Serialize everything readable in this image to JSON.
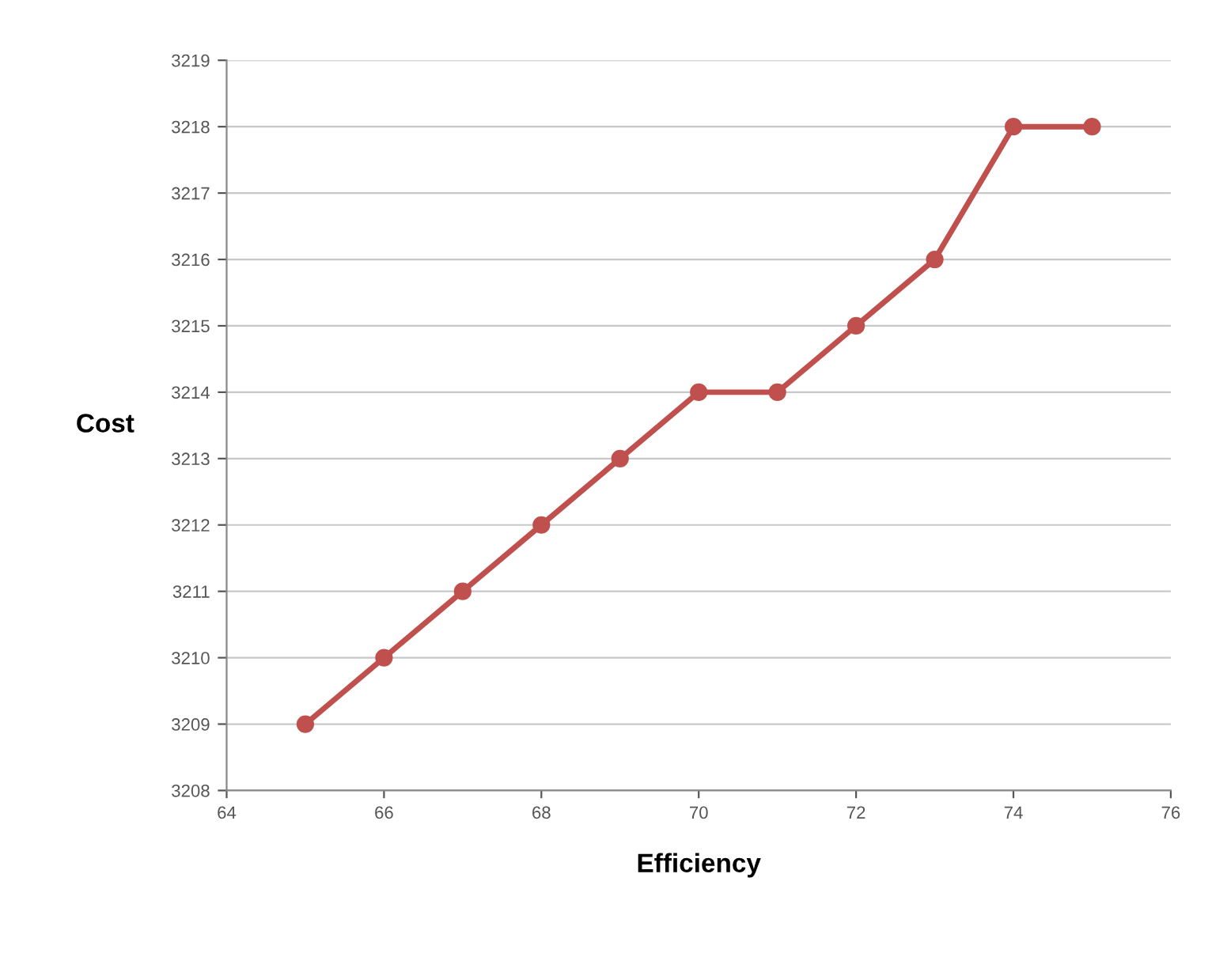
{
  "chart_data": {
    "type": "line",
    "xlabel": "Efficiency",
    "ylabel": "Cost",
    "x": [
      65,
      66,
      67,
      68,
      69,
      70,
      71,
      72,
      73,
      74,
      75
    ],
    "series": [
      {
        "color": "#c0504d",
        "values": [
          3209,
          3210,
          3211,
          3212,
          3213,
          3214,
          3214,
          3215,
          3216,
          3218,
          3218
        ]
      }
    ],
    "xlim": [
      64,
      76
    ],
    "xticks": [
      64,
      66,
      68,
      70,
      72,
      74,
      76
    ],
    "ylim": [
      3208,
      3219
    ],
    "yticks": [
      3208,
      3209,
      3210,
      3211,
      3212,
      3213,
      3214,
      3215,
      3216,
      3217,
      3218,
      3219
    ],
    "grid": "y",
    "marker": "circle",
    "line_style": "solid",
    "legend": false
  }
}
